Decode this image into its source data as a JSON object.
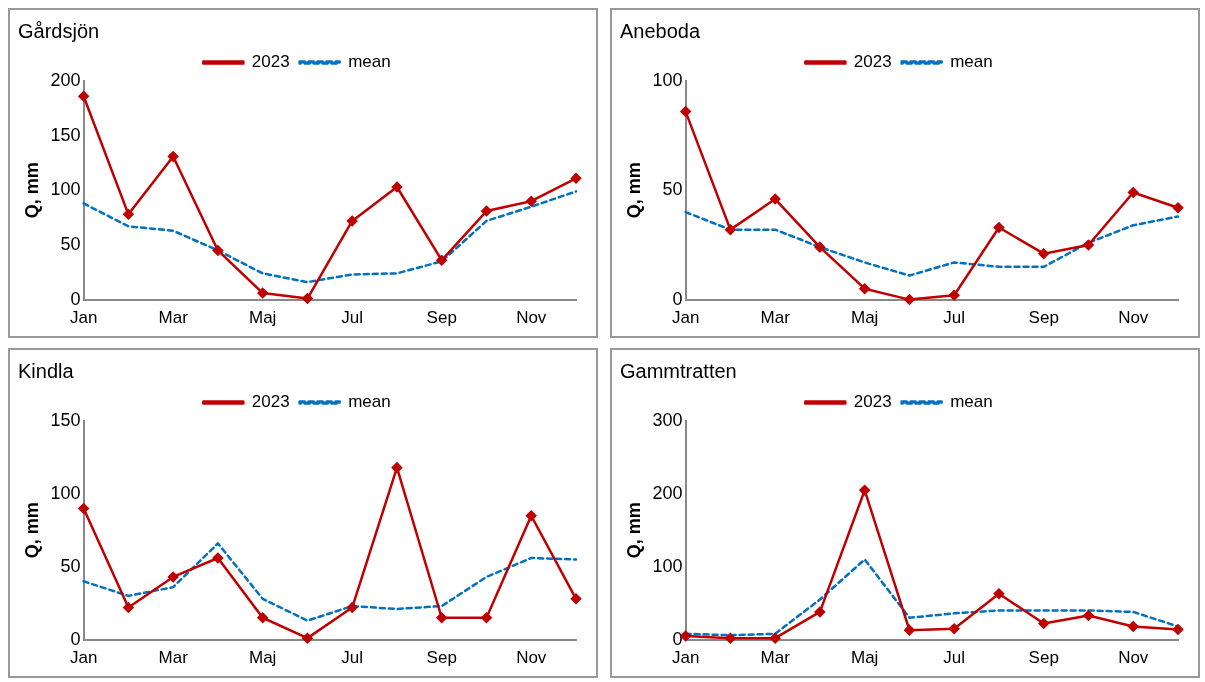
{
  "chart_data": [
    {
      "type": "line",
      "title": "Gårdsjön",
      "ylabel": "Q, mm",
      "categories": [
        "Jan",
        null,
        "Mar",
        null,
        "Maj",
        null,
        "Jul",
        null,
        "Sep",
        null,
        "Nov",
        null
      ],
      "ylim": [
        0,
        200
      ],
      "yticks": [
        0,
        50,
        100,
        150,
        200
      ],
      "grid": false,
      "legend": "top",
      "series": [
        {
          "name": "2023",
          "color": "#c00000",
          "marker": "diamond",
          "line_style": "solid",
          "values": [
            186,
            78,
            131,
            45,
            6,
            1,
            72,
            103,
            36,
            81,
            90,
            111
          ]
        },
        {
          "name": "mean",
          "color": "#0070c0",
          "marker": "none",
          "line_style": "dashed",
          "values": [
            88,
            67,
            63,
            45,
            24,
            16,
            23,
            24,
            35,
            72,
            85,
            99
          ]
        }
      ]
    },
    {
      "type": "line",
      "title": "Aneboda",
      "ylabel": "Q, mm",
      "categories": [
        "Jan",
        null,
        "Mar",
        null,
        "Maj",
        null,
        "Jul",
        null,
        "Sep",
        null,
        "Nov",
        null
      ],
      "ylim": [
        0,
        100
      ],
      "yticks": [
        0,
        50,
        100
      ],
      "grid": false,
      "legend": "top",
      "series": [
        {
          "name": "2023",
          "color": "#c00000",
          "marker": "diamond",
          "line_style": "solid",
          "values": [
            86,
            32,
            46,
            24,
            5,
            0,
            2,
            33,
            21,
            25,
            49,
            42
          ]
        },
        {
          "name": "mean",
          "color": "#0070c0",
          "marker": "none",
          "line_style": "dashed",
          "values": [
            40,
            32,
            32,
            24,
            17,
            11,
            17,
            15,
            15,
            26,
            34,
            38
          ]
        }
      ]
    },
    {
      "type": "line",
      "title": "Kindla",
      "ylabel": "Q, mm",
      "categories": [
        "Jan",
        null,
        "Mar",
        null,
        "Maj",
        null,
        "Jul",
        null,
        "Sep",
        null,
        "Nov",
        null
      ],
      "ylim": [
        0,
        150
      ],
      "yticks": [
        0,
        50,
        100,
        150
      ],
      "grid": false,
      "legend": "top",
      "series": [
        {
          "name": "2023",
          "color": "#c00000",
          "marker": "diamond",
          "line_style": "solid",
          "values": [
            90,
            22,
            43,
            56,
            15,
            1,
            22,
            118,
            15,
            15,
            85,
            28
          ]
        },
        {
          "name": "mean",
          "color": "#0070c0",
          "marker": "none",
          "line_style": "dashed",
          "values": [
            40,
            30,
            36,
            66,
            28,
            13,
            23,
            21,
            23,
            43,
            56,
            55
          ]
        }
      ]
    },
    {
      "type": "line",
      "title": "Gammtratten",
      "ylabel": "Q, mm",
      "categories": [
        "Jan",
        null,
        "Mar",
        null,
        "Maj",
        null,
        "Jul",
        null,
        "Sep",
        null,
        "Nov",
        null
      ],
      "ylim": [
        0,
        300
      ],
      "yticks": [
        0,
        100,
        200,
        300
      ],
      "grid": false,
      "legend": "top",
      "series": [
        {
          "name": "2023",
          "color": "#c00000",
          "marker": "diamond",
          "line_style": "solid",
          "values": [
            5,
            2,
            2,
            38,
            205,
            13,
            15,
            63,
            22,
            33,
            18,
            14
          ]
        },
        {
          "name": "mean",
          "color": "#0070c0",
          "marker": "none",
          "line_style": "dashed",
          "values": [
            8,
            6,
            8,
            55,
            110,
            30,
            36,
            40,
            40,
            40,
            38,
            18
          ]
        }
      ]
    }
  ]
}
